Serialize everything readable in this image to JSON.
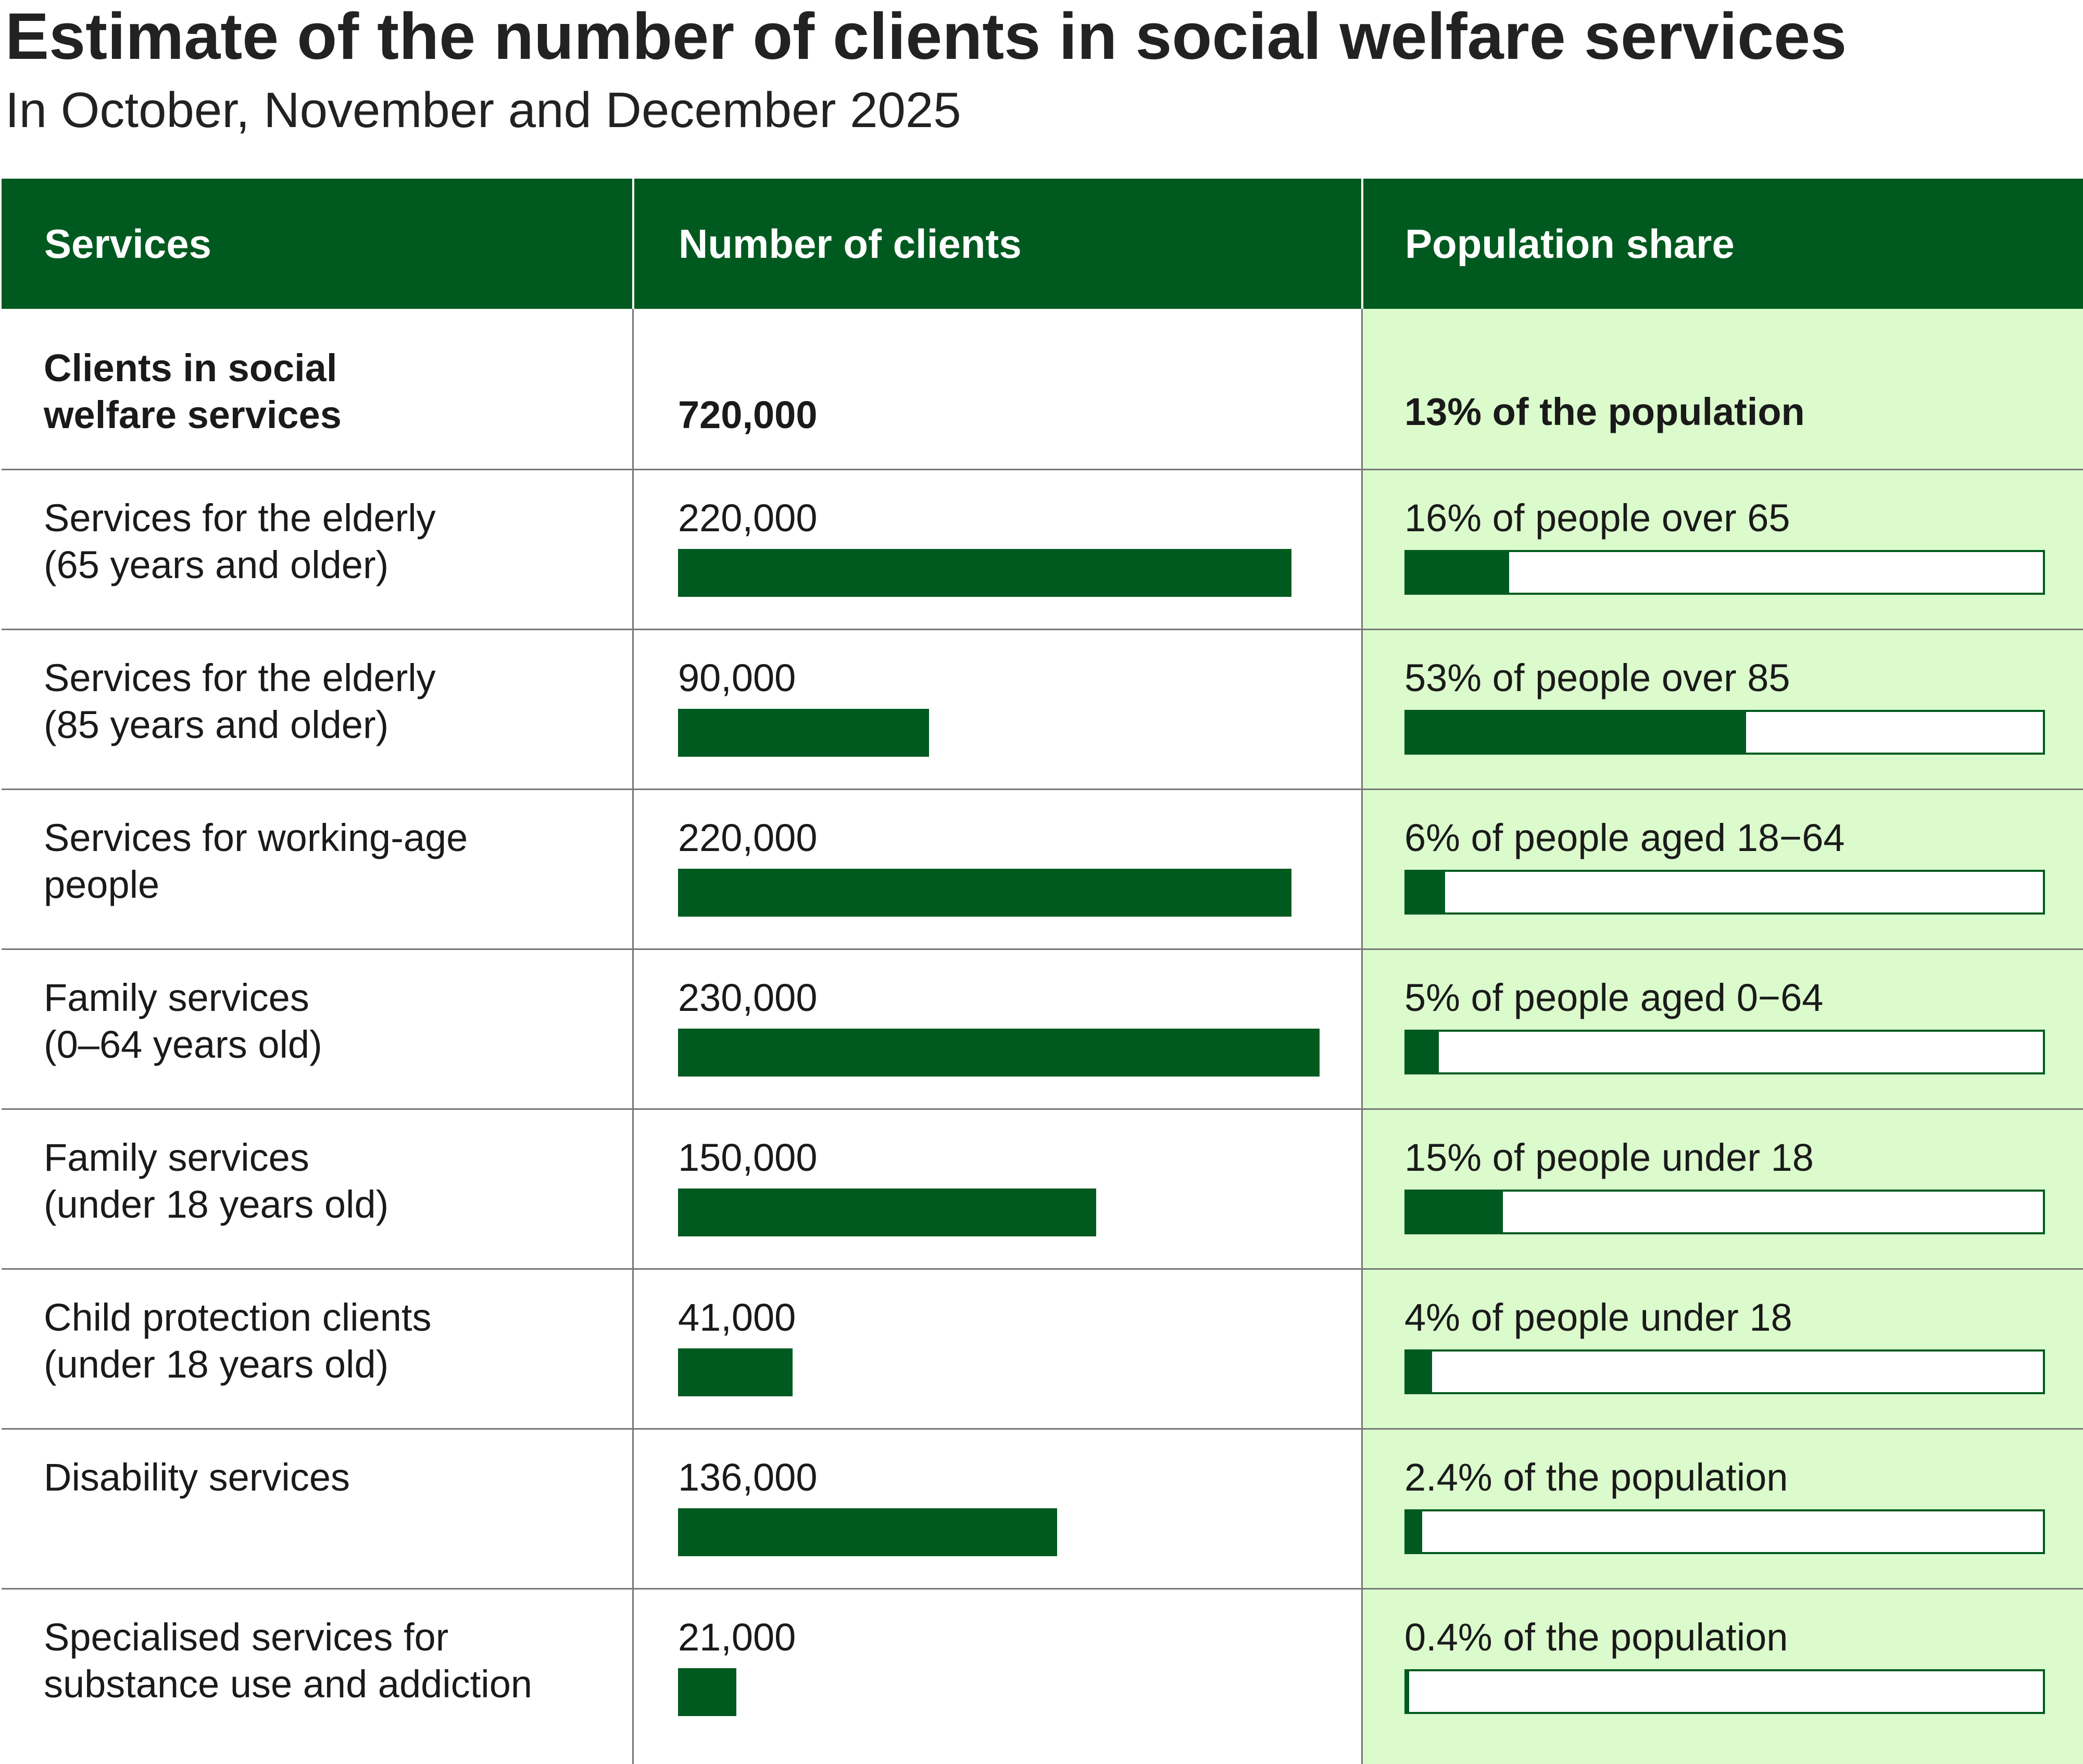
{
  "title": "Estimate of the number of clients in social welfare services",
  "subtitle": "In October, November and December 2025",
  "columns": {
    "services": "Services",
    "clients": "Number of clients",
    "share": "Population share"
  },
  "total": {
    "label_line1": "Clients in social",
    "label_line2": "welfare services",
    "clients": "720,000",
    "share": "13% of the population"
  },
  "colors": {
    "header_bg": "#005a1f",
    "bar": "#005a1f",
    "share_column_bg": "#dbfbcc"
  },
  "chart_data": {
    "type": "table",
    "rows": [
      {
        "line1": "Services for the elderly",
        "line2": "(65 years and older)",
        "clients_label": "220,000",
        "clients": 220000,
        "share_label": "16% of people over 65",
        "share": 16
      },
      {
        "line1": "Services for the elderly",
        "line2": "(85 years and older)",
        "clients_label": "90,000",
        "clients": 90000,
        "share_label": "53% of people over 85",
        "share": 53
      },
      {
        "line1": "Services for working-age",
        "line2": "people",
        "clients_label": "220,000",
        "clients": 220000,
        "share_label": "6% of people aged 18−64",
        "share": 6
      },
      {
        "line1": "Family services",
        "line2": "(0–64 years old)",
        "clients_label": "230,000",
        "clients": 230000,
        "share_label": "5% of people aged 0−64",
        "share": 5
      },
      {
        "line1": "Family services",
        "line2": "(under 18 years old)",
        "clients_label": "150,000",
        "clients": 150000,
        "share_label": "15% of people under 18",
        "share": 15
      },
      {
        "line1": "Child protection clients",
        "line2": "(under 18 years old)",
        "clients_label": "41,000",
        "clients": 41000,
        "share_label": "4% of people under 18",
        "share": 4
      },
      {
        "line1": "Disability services",
        "line2": "",
        "clients_label": "136,000",
        "clients": 136000,
        "share_label": "2.4% of the population",
        "share": 2.4
      },
      {
        "line1": "Specialised services for",
        "line2": "substance use and addiction",
        "clients_label": "21,000",
        "clients": 21000,
        "share_label": "0.4% of the population",
        "share": 0.4
      }
    ],
    "clients_max": 230000,
    "share_max": 100
  }
}
